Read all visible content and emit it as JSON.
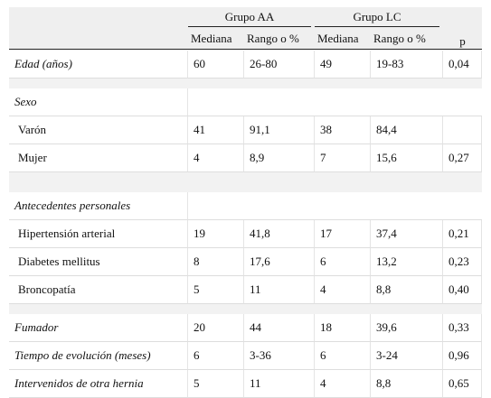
{
  "table": {
    "header": {
      "groups": [
        "Grupo AA",
        "Grupo LC"
      ],
      "columns": [
        "Mediana",
        "Rango o %",
        "Mediana",
        "Rango o %",
        "p"
      ]
    },
    "body": [
      {
        "label": "Edad (años)",
        "cells": [
          "60",
          "26-80",
          "49",
          "19-83",
          "0,04"
        ]
      },
      {
        "label": "Sexo",
        "items": [
          {
            "label": "Varón",
            "cells": [
              "41",
              "91,1",
              "38",
              "84,4",
              null
            ]
          },
          {
            "label": "Mujer",
            "cells": [
              "4",
              "8,9",
              "7",
              "15,6",
              "0,27"
            ]
          }
        ]
      },
      {
        "label": "Antecedentes personales",
        "items": [
          {
            "label": "Hipertensión arterial",
            "cells": [
              "19",
              "41,8",
              "17",
              "37,4",
              "0,21"
            ]
          },
          {
            "label": "Diabetes mellitus",
            "cells": [
              "8",
              "17,6",
              "6",
              "13,2",
              "0,23"
            ]
          },
          {
            "label": "Broncopatía",
            "cells": [
              "5",
              "11",
              "4",
              "8,8",
              "0,40"
            ]
          }
        ]
      },
      {
        "label": "Fumador",
        "cells": [
          "20",
          "44",
          "18",
          "39,6",
          "0,33"
        ]
      },
      {
        "label": "Tiempo de evolución (meses)",
        "cells": [
          "6",
          "3-36",
          "6",
          "3-24",
          "0,96"
        ]
      },
      {
        "label": "Intervenidos de otra hernia",
        "cells": [
          "5",
          "11",
          "4",
          "8,8",
          "0,65"
        ]
      }
    ]
  }
}
